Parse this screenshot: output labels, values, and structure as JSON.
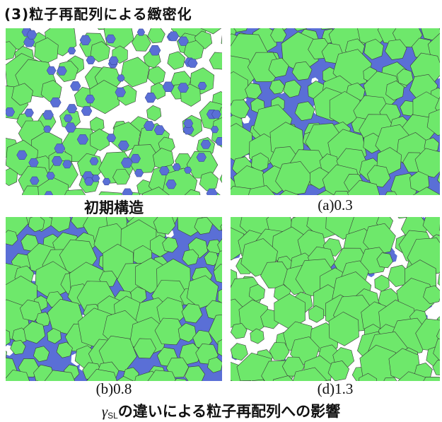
{
  "heading": "(3)粒子再配列による緻密化",
  "panels": [
    {
      "key": "initial",
      "caption": "初期構造"
    },
    {
      "key": "a",
      "caption": "(a)0.3"
    },
    {
      "key": "b",
      "caption": "(b)0.8"
    },
    {
      "key": "d",
      "caption": "(d)1.3"
    }
  ],
  "figure_caption": {
    "symbol": "γ",
    "subscript": "SL",
    "text": "の違いによる粒子再配列への影響"
  },
  "colors": {
    "grain": "#6ee86b",
    "grain_edge": "#3a3a3a",
    "liquid": "#5a6fd6",
    "pore": "#ffffff"
  }
}
